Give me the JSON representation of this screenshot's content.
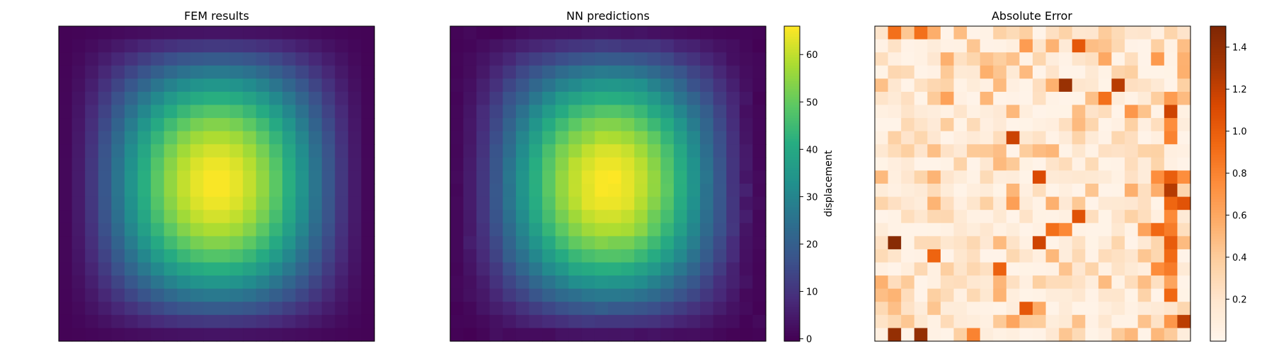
{
  "figure": {
    "background": "#ffffff"
  },
  "chart_data": [
    {
      "type": "heatmap",
      "title": "FEM results",
      "grid": [
        24,
        24
      ],
      "colormap": "viridis",
      "field": "displacement",
      "peak_value": 66,
      "peak_cell": [
        12,
        12
      ],
      "value_range": [
        0,
        66
      ],
      "axes_visible": false
    },
    {
      "type": "heatmap",
      "title": "NN predictions",
      "grid": [
        24,
        24
      ],
      "colormap": "viridis",
      "field": "displacement",
      "peak_value": 66,
      "peak_cell": [
        12,
        12
      ],
      "value_range": [
        0,
        66
      ],
      "axes_visible": false,
      "colorbar": {
        "label": "displacement",
        "range": [
          -0.5,
          66
        ],
        "ticks": [
          0,
          10,
          20,
          30,
          40,
          50,
          60
        ],
        "tick_labels": [
          "0",
          "10",
          "20",
          "30",
          "40",
          "50",
          "60"
        ]
      }
    },
    {
      "type": "heatmap",
      "title": "Absolute Error",
      "grid": [
        24,
        24
      ],
      "colormap": "Oranges",
      "value_range": [
        0,
        1.5
      ],
      "axes_visible": false,
      "colorbar": {
        "label": "",
        "range": [
          0,
          1.5
        ],
        "ticks": [
          0.2,
          0.4,
          0.6,
          0.8,
          1.0,
          1.2,
          1.4
        ],
        "tick_labels": [
          "0.2",
          "0.4",
          "0.6",
          "0.8",
          "1.0",
          "1.2",
          "1.4"
        ]
      }
    }
  ]
}
